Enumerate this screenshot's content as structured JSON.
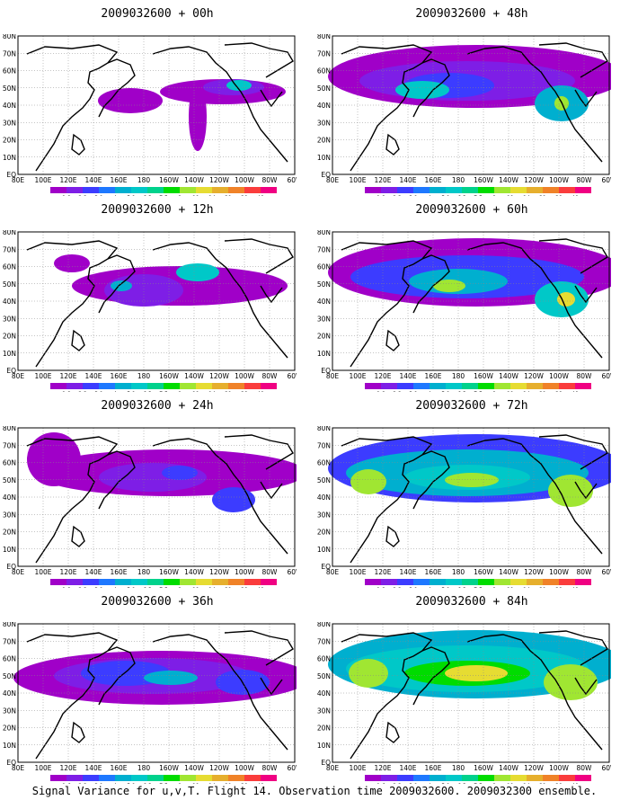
{
  "footer": "Signal Variance for u,v,T. Flight 14. Observation time 2009032600. 2009032300 ensemble.",
  "x_tick_labels": [
    "80E",
    "100E",
    "120E",
    "140E",
    "160E",
    "180",
    "160W",
    "140W",
    "120W",
    "100W",
    "80W",
    "60W"
  ],
  "y_tick_labels": [
    "EQ",
    "10N",
    "20N",
    "30N",
    "40N",
    "50N",
    "60N",
    "70N",
    "80N"
  ],
  "colorbar": {
    "labels": [
      "1.8",
      "2.2",
      "3.1",
      "4",
      "5.1",
      "6.3",
      "7.5",
      "9",
      "11",
      "14",
      "21",
      "29",
      "40"
    ],
    "labels_alt": [
      "1.6",
      "2.2",
      "3.1",
      "4",
      "5.1",
      "6.3",
      "7.5",
      "9",
      "11",
      "14",
      "21",
      "29",
      "40"
    ],
    "colors": [
      "#a000c8",
      "#7e1ee6",
      "#3c3cff",
      "#1e78ff",
      "#00afcf",
      "#00c8c8",
      "#00d28c",
      "#00dc00",
      "#a0e632",
      "#e6dc32",
      "#e6af2d",
      "#f08228",
      "#fa3c3c",
      "#f00082"
    ]
  },
  "chart_data": [
    {
      "type": "heatmap",
      "title": "2009032600 + 00h",
      "colorbar_labels": "labels",
      "map_extent": {
        "lon": [
          "80E",
          "60W"
        ],
        "lat": [
          "EQ",
          "80N"
        ]
      },
      "blobs": [
        [
          228,
          62,
          70,
          14,
          "#a000c8"
        ],
        [
          240,
          57,
          34,
          9,
          "#7e1ee6"
        ],
        [
          246,
          55,
          14,
          6,
          "#00c8c8"
        ],
        [
          125,
          72,
          36,
          14,
          "#a000c8"
        ],
        [
          200,
          90,
          10,
          38,
          "#a000c8"
        ]
      ]
    },
    {
      "type": "heatmap",
      "title": "2009032600 + 12h",
      "colorbar_labels": "labels",
      "map_extent": {
        "lon": [
          "80E",
          "60W"
        ],
        "lat": [
          "EQ",
          "80N"
        ]
      },
      "blobs": [
        [
          180,
          60,
          120,
          22,
          "#a000c8"
        ],
        [
          140,
          65,
          44,
          18,
          "#7e1ee6"
        ],
        [
          115,
          60,
          12,
          6,
          "#00afcf"
        ],
        [
          200,
          45,
          24,
          10,
          "#00c8c8"
        ],
        [
          60,
          35,
          20,
          10,
          "#a000c8"
        ]
      ]
    },
    {
      "type": "heatmap",
      "title": "2009032600 + 24h",
      "colorbar_labels": "labels",
      "map_extent": {
        "lon": [
          "80E",
          "60W"
        ],
        "lat": [
          "EQ",
          "80N"
        ]
      },
      "blobs": [
        [
          170,
          50,
          150,
          26,
          "#a000c8"
        ],
        [
          150,
          55,
          60,
          16,
          "#7e1ee6"
        ],
        [
          180,
          50,
          20,
          8,
          "#3c3cff"
        ],
        [
          240,
          80,
          24,
          14,
          "#3c3cff"
        ],
        [
          40,
          35,
          30,
          30,
          "#a000c8"
        ]
      ]
    },
    {
      "type": "heatmap",
      "title": "2009032600 + 36h",
      "colorbar_labels": "labels_alt",
      "map_extent": {
        "lon": [
          "80E",
          "60W"
        ],
        "lat": [
          "EQ",
          "80N"
        ]
      },
      "blobs": [
        [
          160,
          60,
          165,
          30,
          "#a000c8"
        ],
        [
          150,
          58,
          110,
          20,
          "#7e1ee6"
        ],
        [
          120,
          55,
          50,
          14,
          "#3c3cff"
        ],
        [
          170,
          60,
          30,
          8,
          "#00afcf"
        ],
        [
          250,
          65,
          30,
          14,
          "#3c3cff"
        ]
      ]
    },
    {
      "type": "heatmap",
      "title": "2009032600 + 48h",
      "colorbar_labels": "labels",
      "map_extent": {
        "lon": [
          "80E",
          "60W"
        ],
        "lat": [
          "EQ",
          "80N"
        ]
      },
      "blobs": [
        [
          160,
          45,
          165,
          35,
          "#a000c8"
        ],
        [
          150,
          50,
          120,
          22,
          "#7e1ee6"
        ],
        [
          130,
          55,
          50,
          14,
          "#3c3cff"
        ],
        [
          100,
          60,
          30,
          10,
          "#00c8c8"
        ],
        [
          255,
          75,
          30,
          20,
          "#00afcf"
        ],
        [
          255,
          75,
          8,
          8,
          "#a0e632"
        ]
      ]
    },
    {
      "type": "heatmap",
      "title": "2009032600 + 60h",
      "colorbar_labels": "labels",
      "map_extent": {
        "lon": [
          "80E",
          "60W"
        ],
        "lat": [
          "EQ",
          "80N"
        ]
      },
      "blobs": [
        [
          160,
          45,
          165,
          38,
          "#a000c8"
        ],
        [
          150,
          50,
          130,
          24,
          "#3c3cff"
        ],
        [
          140,
          55,
          55,
          14,
          "#00afcf"
        ],
        [
          130,
          60,
          18,
          7,
          "#a0e632"
        ],
        [
          255,
          75,
          30,
          20,
          "#00c8c8"
        ],
        [
          260,
          75,
          10,
          8,
          "#e6dc32"
        ]
      ]
    },
    {
      "type": "heatmap",
      "title": "2009032600 + 72h",
      "colorbar_labels": "labels",
      "map_extent": {
        "lon": [
          "80E",
          "60W"
        ],
        "lat": [
          "EQ",
          "80N"
        ]
      },
      "blobs": [
        [
          160,
          45,
          165,
          38,
          "#3c3cff"
        ],
        [
          150,
          50,
          135,
          26,
          "#00afcf"
        ],
        [
          150,
          55,
          70,
          14,
          "#00c8c8"
        ],
        [
          155,
          58,
          30,
          8,
          "#a0e632"
        ],
        [
          40,
          60,
          20,
          14,
          "#a0e632"
        ],
        [
          265,
          70,
          25,
          18,
          "#a0e632"
        ]
      ]
    },
    {
      "type": "heatmap",
      "title": "2009032600 + 84h",
      "colorbar_labels": "labels_alt",
      "map_extent": {
        "lon": [
          "80E",
          "60W"
        ],
        "lat": [
          "EQ",
          "80N"
        ]
      },
      "blobs": [
        [
          160,
          45,
          165,
          38,
          "#00afcf"
        ],
        [
          150,
          50,
          135,
          26,
          "#00c8c8"
        ],
        [
          150,
          55,
          70,
          14,
          "#00dc00"
        ],
        [
          160,
          55,
          35,
          9,
          "#e6dc32"
        ],
        [
          40,
          55,
          22,
          16,
          "#a0e632"
        ],
        [
          265,
          65,
          30,
          20,
          "#a0e632"
        ]
      ]
    }
  ]
}
